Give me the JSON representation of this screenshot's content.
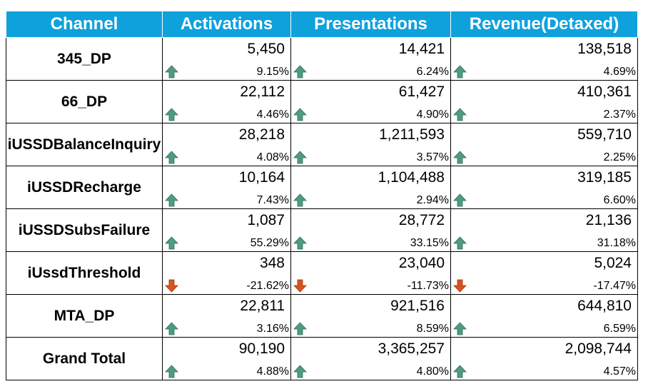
{
  "headers": [
    "Channel",
    "Activations",
    "Presentations",
    "Revenue(Detaxed)"
  ],
  "colors": {
    "header_bg": "#0fa1dc",
    "arrow_up": "#4e9b83",
    "arrow_down": "#d9531e"
  },
  "rows": [
    {
      "channel": "345_DP",
      "cells": [
        {
          "value": "5,450",
          "pct": "9.15%",
          "trend": "up"
        },
        {
          "value": "14,421",
          "pct": "6.24%",
          "trend": "up"
        },
        {
          "value": "138,518",
          "pct": "4.69%",
          "trend": "up"
        }
      ]
    },
    {
      "channel": "66_DP",
      "cells": [
        {
          "value": "22,112",
          "pct": "4.46%",
          "trend": "up"
        },
        {
          "value": "61,427",
          "pct": "4.90%",
          "trend": "up"
        },
        {
          "value": "410,361",
          "pct": "2.37%",
          "trend": "up"
        }
      ]
    },
    {
      "channel": "iUSSDBalanceInquiry",
      "cells": [
        {
          "value": "28,218",
          "pct": "4.08%",
          "trend": "up"
        },
        {
          "value": "1,211,593",
          "pct": "3.57%",
          "trend": "up"
        },
        {
          "value": "559,710",
          "pct": "2.25%",
          "trend": "up"
        }
      ]
    },
    {
      "channel": "iUSSDRecharge",
      "cells": [
        {
          "value": "10,164",
          "pct": "7.43%",
          "trend": "up"
        },
        {
          "value": "1,104,488",
          "pct": "2.94%",
          "trend": "up"
        },
        {
          "value": "319,185",
          "pct": "6.60%",
          "trend": "up"
        }
      ]
    },
    {
      "channel": "iUSSDSubsFailure",
      "cells": [
        {
          "value": "1,087",
          "pct": "55.29%",
          "trend": "up"
        },
        {
          "value": "28,772",
          "pct": "33.15%",
          "trend": "up"
        },
        {
          "value": "21,136",
          "pct": "31.18%",
          "trend": "up"
        }
      ]
    },
    {
      "channel": "iUssdThreshold",
      "cells": [
        {
          "value": "348",
          "pct": "-21.62%",
          "trend": "down"
        },
        {
          "value": "23,040",
          "pct": "-11.73%",
          "trend": "down"
        },
        {
          "value": "5,024",
          "pct": "-17.47%",
          "trend": "down"
        }
      ]
    },
    {
      "channel": "MTA_DP",
      "cells": [
        {
          "value": "22,811",
          "pct": "3.16%",
          "trend": "up"
        },
        {
          "value": "921,516",
          "pct": "8.59%",
          "trend": "up"
        },
        {
          "value": "644,810",
          "pct": "6.59%",
          "trend": "up"
        }
      ]
    },
    {
      "channel": "Grand Total",
      "cells": [
        {
          "value": "90,190",
          "pct": "4.88%",
          "trend": "up"
        },
        {
          "value": "3,365,257",
          "pct": "4.80%",
          "trend": "up"
        },
        {
          "value": "2,098,744",
          "pct": "4.57%",
          "trend": "up"
        }
      ]
    }
  ]
}
